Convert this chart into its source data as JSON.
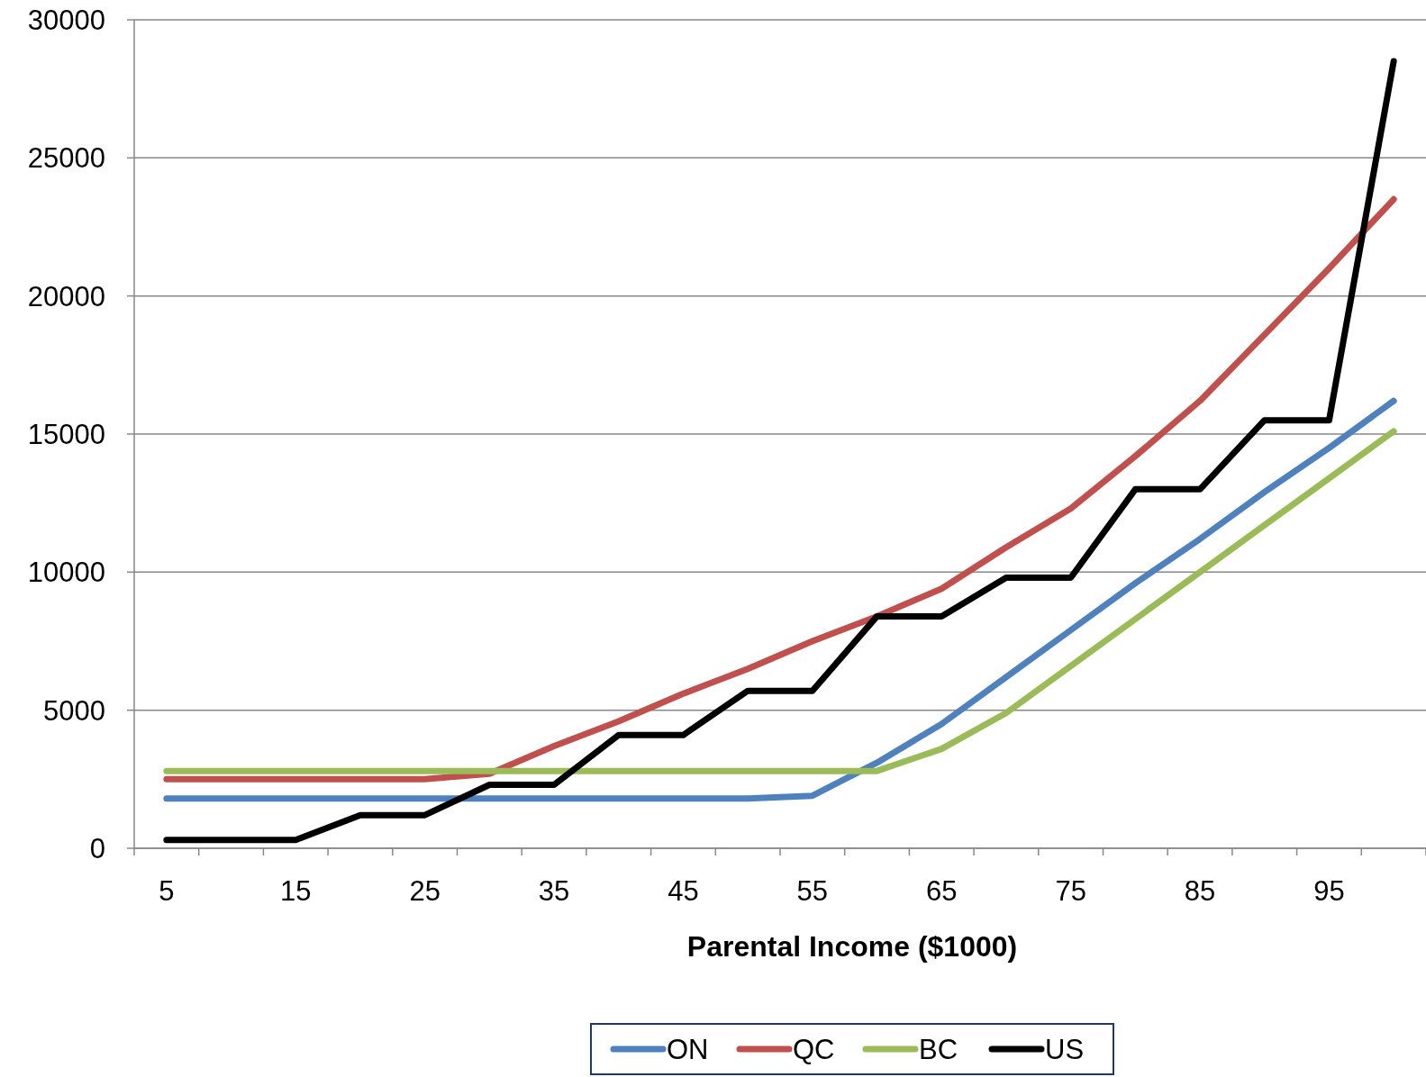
{
  "chart_data": {
    "type": "line",
    "xlabel": "Parental Income ($1000)",
    "categories": [
      "5",
      null,
      "15",
      null,
      "25",
      null,
      "35",
      null,
      "45",
      null,
      "55",
      null,
      "65",
      null,
      "75",
      null,
      "85",
      null,
      "95",
      null
    ],
    "series": [
      {
        "name": "ON",
        "color": "#4f81bd",
        "values": [
          1800,
          1800,
          1800,
          1800,
          1800,
          1800,
          1800,
          1800,
          1800,
          1800,
          1900,
          3100,
          4500,
          6200,
          7900,
          9600,
          11200,
          12900,
          14500,
          16200
        ]
      },
      {
        "name": "QC",
        "color": "#c0504d",
        "values": [
          2500,
          2500,
          2500,
          2500,
          2500,
          2700,
          3700,
          4600,
          5600,
          6500,
          7500,
          8400,
          9400,
          10900,
          12300,
          14200,
          16200,
          18600,
          21000,
          23500
        ]
      },
      {
        "name": "BC",
        "color": "#9bbb59",
        "values": [
          2800,
          2800,
          2800,
          2800,
          2800,
          2800,
          2800,
          2800,
          2800,
          2800,
          2800,
          2800,
          3600,
          4900,
          6600,
          8300,
          10000,
          11700,
          13400,
          15100
        ]
      },
      {
        "name": "US",
        "color": "#000000",
        "values": [
          300,
          300,
          300,
          1200,
          1200,
          2300,
          2300,
          4100,
          4100,
          5700,
          5700,
          8400,
          8400,
          9800,
          9800,
          13000,
          13000,
          15500,
          15500,
          28500
        ]
      }
    ],
    "ylim": [
      0,
      30000
    ],
    "yticks": [
      0,
      5000,
      10000,
      15000,
      20000,
      25000,
      30000
    ],
    "grid": "y",
    "legend": "bottom",
    "line_style": "solid",
    "marker": "none"
  }
}
